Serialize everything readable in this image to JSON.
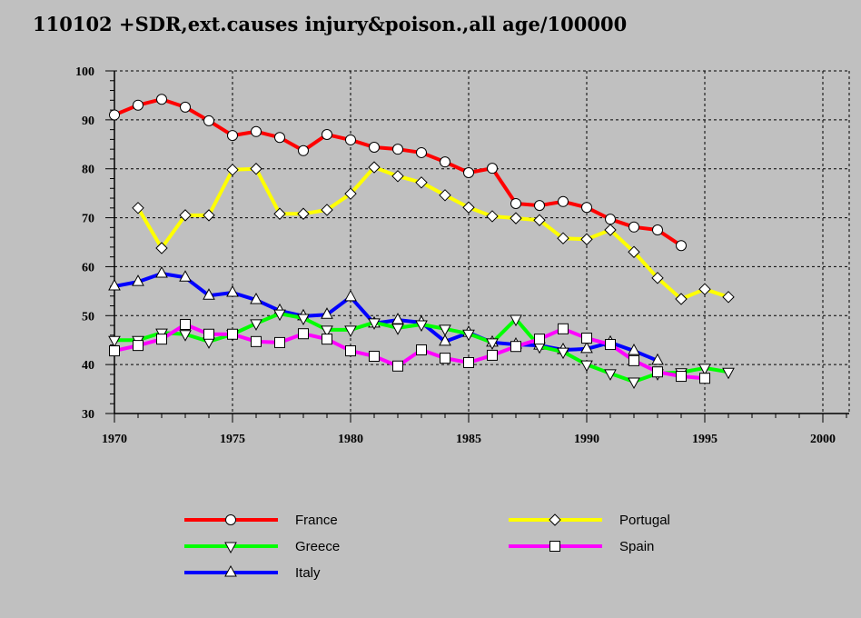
{
  "chart_data": {
    "type": "line",
    "title": "110102 +SDR,ext.causes injury&poison.,all age/100000",
    "xlabel": "",
    "ylabel": "",
    "xlim": [
      1970,
      2000
    ],
    "ylim": [
      30,
      100
    ],
    "x_ticks": [
      "1970",
      "1975",
      "1980",
      "1985",
      "1990",
      "1995",
      "2000"
    ],
    "y_ticks": [
      "30",
      "40",
      "50",
      "60",
      "70",
      "80",
      "90",
      "100"
    ],
    "grid": true,
    "legend_position": "bottom",
    "series": [
      {
        "name": "France",
        "color": "#ff0000",
        "marker": "circle",
        "start": 1970,
        "values": [
          91,
          93,
          94.2,
          92.6,
          89.8,
          86.8,
          87.6,
          86.4,
          83.7,
          87,
          85.9,
          84.4,
          84,
          83.3,
          81.4,
          79.2,
          80.1,
          72.9,
          72.5,
          73.3,
          72.1,
          69.7,
          68.1,
          67.5,
          64.3
        ]
      },
      {
        "name": "Portugal",
        "color": "#ffff00",
        "marker": "diamond",
        "start": 1971,
        "values": [
          72,
          63.8,
          70.5,
          70.5,
          79.8,
          80,
          70.8,
          70.8,
          71.6,
          74.9,
          80.3,
          78.5,
          77.2,
          74.6,
          72.1,
          70.3,
          69.9,
          69.5,
          65.8,
          65.6,
          67.5,
          63,
          57.7,
          53.4,
          55.4,
          53.8
        ]
      },
      {
        "name": "Greece",
        "color": "#00ff00",
        "marker": "triangle-down",
        "start": 1970,
        "values": [
          45,
          45,
          46.5,
          46.2,
          44.7,
          46.2,
          48.4,
          50.4,
          49.5,
          47.1,
          47.1,
          48.6,
          47.5,
          48.2,
          47.3,
          46.3,
          44.5,
          49.3,
          43.7,
          42.6,
          40,
          38.2,
          36.5,
          38.2,
          38.4,
          39.3,
          38.5
        ]
      },
      {
        "name": "Spain",
        "color": "#ff00ff",
        "marker": "square",
        "start": 1970,
        "values": [
          42.8,
          43.9,
          45.2,
          48.2,
          46.2,
          46.2,
          44.7,
          44.5,
          46.3,
          45.2,
          42.8,
          41.7,
          39.7,
          43,
          41.3,
          40.4,
          41.9,
          43.7,
          45.2,
          47.3,
          45.4,
          44.1,
          40.8,
          38.5,
          37.6,
          37.2
        ]
      },
      {
        "name": "Italy",
        "color": "#0000ff",
        "marker": "triangle-up",
        "start": 1970,
        "values": [
          56,
          56.9,
          58.6,
          57.8,
          54.1,
          54.7,
          53.2,
          51,
          49.9,
          50.2,
          53.8,
          48.4,
          49.1,
          48.6,
          44.7,
          46.5,
          44.5,
          44.1,
          43.9,
          43,
          43.2,
          44.5,
          42.8,
          40.8
        ]
      }
    ]
  }
}
